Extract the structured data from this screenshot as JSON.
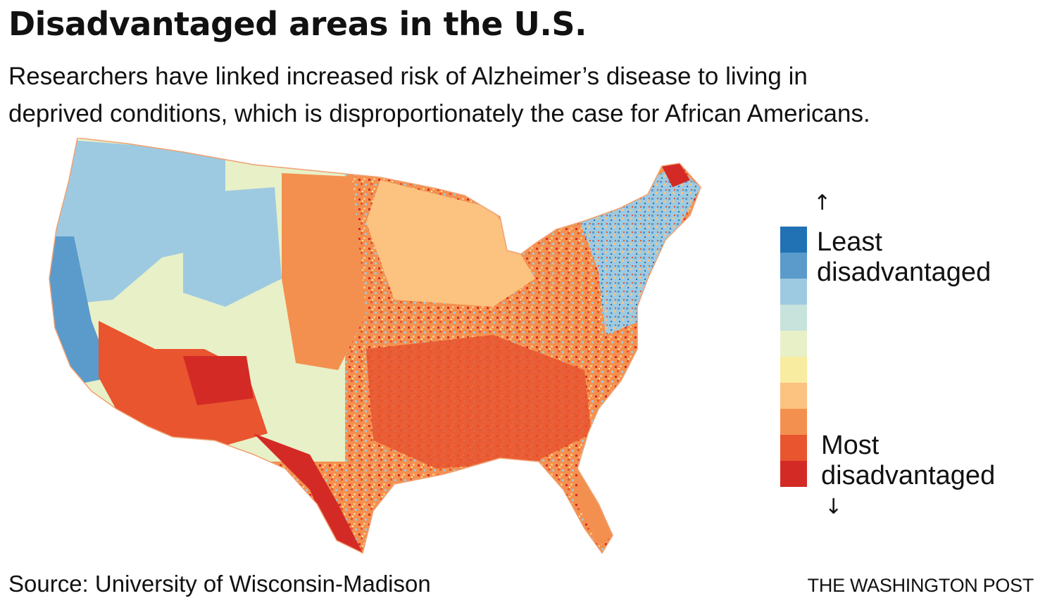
{
  "header": {
    "title": "Disadvantaged areas in the U.S.",
    "subtitle_lines": [
      "Researchers have linked increased risk of Alzheimer’s disease to living in",
      "deprived conditions, which is disproportionately the case for African Americans."
    ]
  },
  "legend": {
    "top_label_lines": [
      "Least",
      "disadvantaged"
    ],
    "bottom_label_lines": [
      "Most",
      "disadvantaged"
    ],
    "up_arrow": "↑",
    "down_arrow": "↓",
    "colors": [
      "#2171b5",
      "#5a9bcc",
      "#9ecae1",
      "#c7e3dc",
      "#e8f0c8",
      "#f8eca0",
      "#fcc27f",
      "#f4904f",
      "#e8552f",
      "#d42a26"
    ]
  },
  "map": {
    "outline_color": "#f0a070",
    "region_colors": {
      "northwest": "#9ecae1",
      "west_coast": "#5a9bcc",
      "mountain": "#e8f0c8",
      "southwest": "#e8552f",
      "plains": "#f4904f",
      "great_lakes": "#fcc27f",
      "northeast": "#5a9bcc",
      "southeast": "#e8552f",
      "texas_south": "#d42a26",
      "florida": "#f4904f"
    }
  },
  "footer": {
    "source": "Source: University of Wisconsin-Madison",
    "credit": "THE WASHINGTON POST"
  }
}
